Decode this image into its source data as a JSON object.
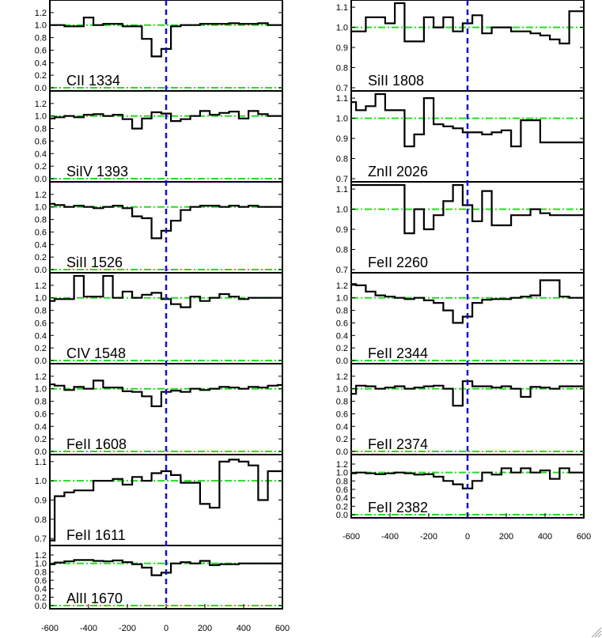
{
  "colors": {
    "spectrum": "#000000",
    "continuum": "#22dd22",
    "zero_velocity": "#1111cc",
    "frame": "#000000"
  },
  "chart_data": {
    "type": "line",
    "xlim": [
      -600,
      600
    ],
    "x_tick_labels": [
      "-600",
      "-400",
      "-200",
      "0",
      "200",
      "400",
      "600"
    ],
    "continuum_level": 1.0,
    "zero_level": 0.0,
    "zero_velocity_marker": 0,
    "columns": [
      {
        "panels": [
          {
            "label": "CII 1334",
            "ylim": [
              0,
              1.35
            ],
            "y_tick_labels": [
              "0.0",
              "0.2",
              "0.4",
              "0.6",
              "0.8",
              "1.0",
              "1.2"
            ],
            "x": [
              -600,
              -550,
              -500,
              -450,
              -400,
              -350,
              -300,
              -250,
              -200,
              -150,
              -100,
              -50,
              0,
              50,
              100,
              150,
              200,
              250,
              300,
              350,
              400,
              450,
              500,
              550,
              600
            ],
            "y": [
              1.0,
              1.0,
              0.98,
              0.98,
              1.12,
              1.0,
              1.02,
              1.02,
              0.98,
              0.98,
              0.78,
              0.5,
              0.62,
              0.98,
              1.0,
              1.0,
              1.02,
              1.02,
              1.02,
              1.03,
              1.02,
              1.02,
              1.03,
              1.0,
              1.0
            ]
          },
          {
            "label": "SiIV 1393",
            "ylim": [
              0,
              1.35
            ],
            "y_tick_labels": [
              "0.0",
              "0.2",
              "0.4",
              "0.6",
              "0.8",
              "1.0",
              "1.2"
            ],
            "x": [
              -600,
              -550,
              -500,
              -450,
              -400,
              -350,
              -300,
              -250,
              -200,
              -150,
              -100,
              -50,
              0,
              50,
              100,
              150,
              200,
              250,
              300,
              350,
              400,
              450,
              500,
              550,
              600
            ],
            "y": [
              0.96,
              0.98,
              1.0,
              0.98,
              1.02,
              1.03,
              1.0,
              1.02,
              0.95,
              0.8,
              0.96,
              1.06,
              1.04,
              0.92,
              0.95,
              1.0,
              1.08,
              1.02,
              1.05,
              1.07,
              0.96,
              1.08,
              1.03,
              1.0,
              1.0
            ]
          },
          {
            "label": "SiII 1526",
            "ylim": [
              0,
              1.35
            ],
            "y_tick_labels": [
              "0.0",
              "0.2",
              "0.4",
              "0.6",
              "0.8",
              "1.0",
              "1.2"
            ],
            "x": [
              -600,
              -550,
              -500,
              -450,
              -400,
              -350,
              -300,
              -250,
              -200,
              -150,
              -100,
              -50,
              0,
              50,
              100,
              150,
              200,
              250,
              300,
              350,
              400,
              450,
              500,
              550,
              600
            ],
            "y": [
              1.05,
              1.03,
              1.0,
              1.02,
              1.0,
              0.98,
              1.0,
              1.02,
              0.98,
              0.85,
              0.82,
              0.5,
              0.62,
              0.78,
              0.95,
              1.0,
              1.02,
              1.02,
              1.0,
              1.02,
              1.0,
              1.02,
              1.0,
              1.0,
              1.0
            ]
          },
          {
            "label": "CIV 1548",
            "ylim": [
              0,
              1.35
            ],
            "y_tick_labels": [
              "0.0",
              "0.2",
              "0.4",
              "0.6",
              "0.8",
              "1.0",
              "1.2"
            ],
            "x": [
              -600,
              -550,
              -500,
              -450,
              -400,
              -350,
              -300,
              -250,
              -200,
              -150,
              -100,
              -50,
              0,
              50,
              100,
              150,
              200,
              250,
              300,
              350,
              400,
              450,
              500,
              550,
              600
            ],
            "y": [
              0.95,
              0.98,
              0.98,
              1.4,
              1.02,
              1.02,
              1.4,
              1.0,
              1.1,
              1.0,
              1.05,
              1.08,
              0.98,
              0.9,
              0.85,
              1.02,
              0.95,
              1.0,
              1.06,
              1.02,
              0.98,
              1.0,
              1.0,
              1.0,
              1.0
            ]
          },
          {
            "label": "FeII 1608",
            "ylim": [
              0,
              1.35
            ],
            "y_tick_labels": [
              "0.0",
              "0.2",
              "0.4",
              "0.6",
              "0.8",
              "1.0",
              "1.2"
            ],
            "x": [
              -600,
              -550,
              -500,
              -450,
              -400,
              -350,
              -300,
              -250,
              -200,
              -150,
              -100,
              -50,
              0,
              50,
              100,
              150,
              200,
              250,
              300,
              350,
              400,
              450,
              500,
              550,
              600
            ],
            "y": [
              1.07,
              1.05,
              0.98,
              1.03,
              1.0,
              1.13,
              1.02,
              1.02,
              0.96,
              0.95,
              0.88,
              0.72,
              0.95,
              0.97,
              0.95,
              1.0,
              0.98,
              1.0,
              1.03,
              1.02,
              1.0,
              1.03,
              1.02,
              1.05,
              1.06
            ]
          },
          {
            "label": "FeII 1611",
            "ylim": [
              0.68,
              1.12
            ],
            "y_tick_labels": [
              "0.7",
              "0.8",
              "0.9",
              "1.0",
              "1.1"
            ],
            "x": [
              -600,
              -550,
              -500,
              -450,
              -400,
              -350,
              -300,
              -250,
              -200,
              -150,
              -100,
              -50,
              0,
              50,
              100,
              150,
              200,
              250,
              300,
              350,
              400,
              450,
              500,
              550,
              600
            ],
            "y": [
              0.69,
              0.92,
              0.94,
              0.95,
              0.95,
              1.0,
              1.0,
              1.01,
              0.98,
              1.02,
              1.0,
              1.04,
              1.05,
              1.03,
              0.99,
              0.99,
              0.88,
              0.86,
              1.1,
              1.11,
              1.1,
              1.08,
              0.9,
              1.05,
              1.05
            ]
          },
          {
            "label": "AlII 1670",
            "ylim": [
              0,
              1.35
            ],
            "y_tick_labels": [
              "0.0",
              "0.2",
              "0.4",
              "0.6",
              "0.8",
              "1.0",
              "1.2"
            ],
            "x": [
              -600,
              -550,
              -500,
              -450,
              -400,
              -350,
              -300,
              -250,
              -200,
              -150,
              -100,
              -50,
              0,
              50,
              100,
              150,
              200,
              250,
              300,
              350,
              400,
              450,
              500,
              550,
              600
            ],
            "y": [
              0.98,
              1.02,
              1.05,
              1.08,
              1.08,
              1.06,
              1.05,
              1.07,
              1.03,
              0.98,
              0.9,
              0.72,
              0.78,
              1.0,
              1.03,
              1.0,
              1.06,
              0.96,
              0.98,
              0.98,
              1.0,
              1.0,
              1.0,
              1.0,
              1.0
            ]
          }
        ]
      },
      {
        "panels": [
          {
            "label": "SiII 1808",
            "ylim": [
              0.7,
              1.12
            ],
            "y_tick_labels": [
              "0.7",
              "0.8",
              "0.9",
              "1.0",
              "1.1"
            ],
            "x": [
              -600,
              -550,
              -500,
              -450,
              -400,
              -350,
              -300,
              -250,
              -200,
              -150,
              -100,
              -50,
              0,
              50,
              100,
              150,
              200,
              250,
              300,
              350,
              400,
              450,
              500,
              550,
              600
            ],
            "y": [
              0.98,
              0.98,
              1.05,
              1.05,
              1.02,
              1.12,
              0.93,
              0.93,
              1.05,
              1.0,
              1.05,
              0.98,
              1.02,
              1.06,
              0.97,
              1.0,
              1.0,
              0.98,
              0.98,
              0.97,
              0.96,
              0.94,
              0.92,
              1.08,
              1.08
            ]
          },
          {
            "label": "ZnII 2026",
            "ylim": [
              0.7,
              1.12
            ],
            "y_tick_labels": [
              "0.7",
              "0.8",
              "0.9",
              "1.0",
              "1.1"
            ],
            "x": [
              -600,
              -550,
              -500,
              -450,
              -400,
              -350,
              -300,
              -250,
              -200,
              -150,
              -100,
              -50,
              0,
              50,
              100,
              150,
              200,
              250,
              300,
              350,
              400,
              450,
              500,
              550,
              600
            ],
            "y": [
              1.08,
              1.04,
              1.06,
              1.12,
              1.04,
              1.04,
              0.86,
              0.92,
              1.1,
              0.97,
              0.96,
              0.95,
              0.93,
              0.93,
              0.92,
              0.93,
              0.94,
              0.86,
              0.99,
              0.99,
              0.88,
              0.88,
              0.88,
              0.88,
              0.88
            ]
          },
          {
            "label": "FeII 2260",
            "ylim": [
              0.7,
              1.12
            ],
            "y_tick_labels": [
              "0.7",
              "0.8",
              "0.9",
              "1.0",
              "1.1"
            ],
            "x": [
              -600,
              -550,
              -500,
              -450,
              -400,
              -350,
              -300,
              -250,
              -200,
              -150,
              -100,
              -50,
              0,
              50,
              100,
              150,
              200,
              250,
              300,
              350,
              400,
              450,
              500,
              550,
              600
            ],
            "y": [
              1.12,
              1.12,
              1.12,
              1.12,
              1.12,
              1.12,
              0.88,
              1.0,
              0.9,
              0.97,
              1.04,
              1.12,
              1.02,
              0.94,
              1.09,
              0.92,
              0.92,
              0.97,
              0.97,
              1.0,
              0.98,
              0.97,
              0.97,
              0.97,
              0.97
            ]
          },
          {
            "label": "FeII 2344",
            "ylim": [
              0,
              1.35
            ],
            "y_tick_labels": [
              "0.0",
              "0.2",
              "0.4",
              "0.6",
              "0.8",
              "1.0",
              "1.2"
            ],
            "x": [
              -600,
              -550,
              -500,
              -450,
              -400,
              -350,
              -300,
              -250,
              -200,
              -150,
              -100,
              -50,
              0,
              50,
              100,
              150,
              200,
              250,
              300,
              350,
              400,
              450,
              500,
              550,
              600
            ],
            "y": [
              1.22,
              1.2,
              1.1,
              1.04,
              1.02,
              1.0,
              0.98,
              1.0,
              0.96,
              0.92,
              0.8,
              0.6,
              0.7,
              0.92,
              0.97,
              0.98,
              0.98,
              1.0,
              1.02,
              1.04,
              1.28,
              1.28,
              1.02,
              1.0,
              1.0
            ]
          },
          {
            "label": "FeII 2374",
            "ylim": [
              0,
              1.35
            ],
            "y_tick_labels": [
              "0.0",
              "0.2",
              "0.4",
              "0.6",
              "0.8",
              "1.0",
              "1.2"
            ],
            "x": [
              -600,
              -550,
              -500,
              -450,
              -400,
              -350,
              -300,
              -250,
              -200,
              -150,
              -100,
              -50,
              0,
              50,
              100,
              150,
              200,
              250,
              300,
              350,
              400,
              450,
              500,
              550,
              600
            ],
            "y": [
              0.92,
              1.05,
              1.04,
              1.0,
              1.02,
              1.04,
              1.0,
              1.02,
              1.04,
              1.05,
              1.0,
              0.73,
              1.12,
              1.04,
              1.04,
              1.02,
              1.04,
              1.0,
              0.87,
              1.03,
              1.02,
              1.0,
              1.04,
              1.04,
              1.04
            ]
          },
          {
            "label": "FeII 2382",
            "ylim": [
              0,
              1.35
            ],
            "y_tick_labels": [
              "0.0",
              "0.2",
              "0.4",
              "0.6",
              "0.8",
              "1.0",
              "1.2"
            ],
            "x": [
              -600,
              -550,
              -500,
              -450,
              -400,
              -350,
              -300,
              -250,
              -200,
              -150,
              -100,
              -50,
              0,
              50,
              100,
              150,
              200,
              250,
              300,
              350,
              400,
              450,
              500,
              550,
              600
            ],
            "y": [
              0.98,
              1.0,
              0.98,
              0.96,
              0.98,
              1.0,
              0.98,
              0.95,
              0.96,
              0.9,
              0.8,
              0.72,
              0.62,
              0.8,
              1.0,
              0.95,
              1.1,
              1.0,
              1.1,
              1.0,
              1.05,
              0.85,
              1.1,
              1.0,
              1.0
            ]
          }
        ]
      }
    ]
  }
}
